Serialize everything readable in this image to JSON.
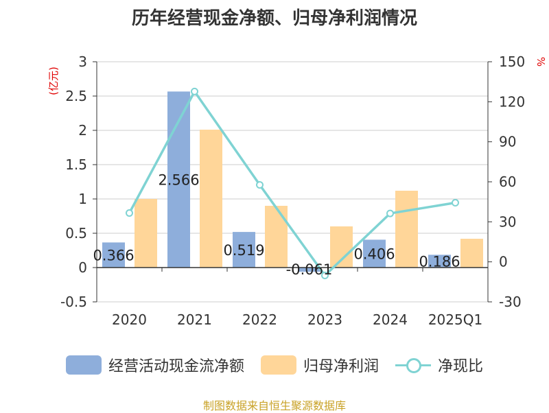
{
  "title": "历年经营现金净额、归母净利润情况",
  "source": "制图数据来自恒生聚源数据库",
  "chart_data": {
    "type": "bar",
    "categories": [
      "2020",
      "2021",
      "2022",
      "2023",
      "2024",
      "2025Q1"
    ],
    "series": [
      {
        "name": "经营活动现金流净额",
        "type": "bar",
        "axis": "left",
        "color": "#8eaedb",
        "values": [
          0.366,
          2.566,
          0.519,
          -0.061,
          0.406,
          0.186
        ],
        "labels": [
          "0.366",
          "2.566",
          "0.519",
          "-0.061",
          "0.406",
          "0.186"
        ]
      },
      {
        "name": "归母净利润",
        "type": "bar",
        "axis": "left",
        "color": "#ffd699",
        "values": [
          1.0,
          2.01,
          0.9,
          0.6,
          1.12,
          0.42
        ]
      },
      {
        "name": "净现比",
        "type": "line",
        "axis": "right",
        "color": "#7fd3d3",
        "values": [
          36.6,
          127.7,
          57.7,
          -10.2,
          36.3,
          44.3
        ]
      }
    ],
    "y_left": {
      "label": "(亿元)",
      "min": -0.5,
      "max": 3,
      "ticks": [
        "-0.5",
        "0",
        "0.5",
        "1",
        "1.5",
        "2",
        "2.5",
        "3"
      ]
    },
    "y_right": {
      "label": "%",
      "min": -30,
      "max": 150,
      "ticks": [
        "-30",
        "0",
        "30",
        "60",
        "90",
        "120",
        "150"
      ]
    },
    "grid": true,
    "legend": "bottom"
  }
}
